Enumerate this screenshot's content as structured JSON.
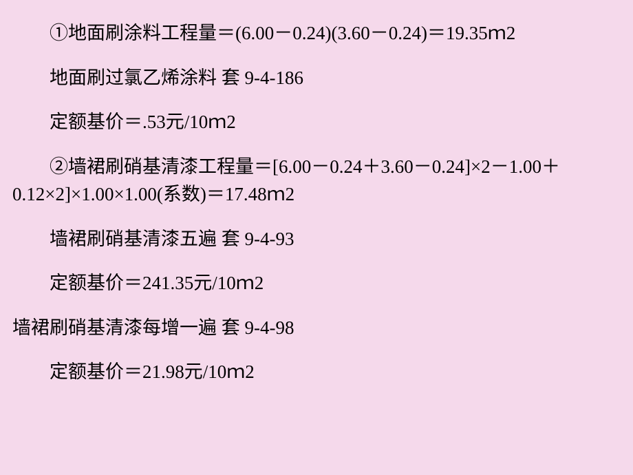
{
  "background_color": "#f5d9eb",
  "text_color": "#000000",
  "font_size": 27,
  "lines": [
    {
      "text": "①地面刷涂料工程量＝(6.00－0.24)(3.60－0.24)＝19.35ｍ2",
      "indent": true
    },
    {
      "text": "地面刷过氯乙烯涂料  套 9-4-186",
      "indent": true
    },
    {
      "text": "定额基价＝.53元/10ｍ2",
      "indent": true
    },
    {
      "text": "②墙裙刷硝基清漆工程量＝[6.00－0.24＋3.60－0.24]×2－1.00＋0.12×2]×1.00×1.00(系数)＝17.48ｍ2",
      "indent": true
    },
    {
      "text": "墙裙刷硝基清漆五遍  套 9-4-93",
      "indent": true
    },
    {
      "text": "定额基价＝241.35元/10ｍ2",
      "indent": true
    },
    {
      "text": "墙裙刷硝基清漆每增一遍  套 9-4-98",
      "indent": false
    },
    {
      "text": "定额基价＝21.98元/10ｍ2",
      "indent": true
    }
  ]
}
